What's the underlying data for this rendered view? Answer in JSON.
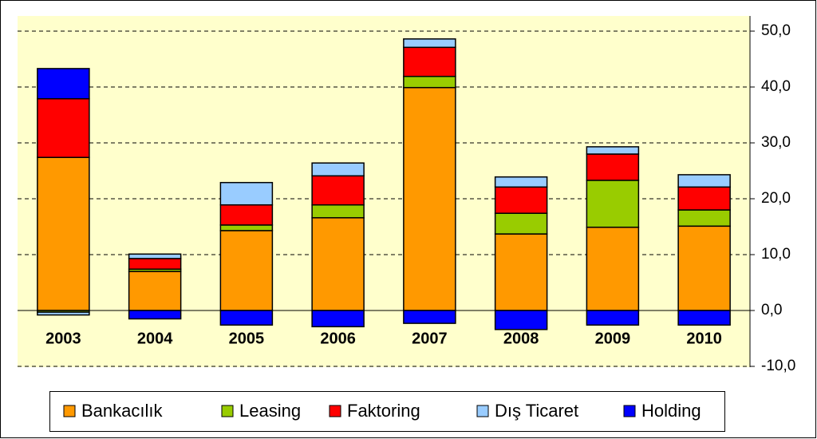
{
  "chart_data": {
    "type": "stacked_bar",
    "categories": [
      "2003",
      "2004",
      "2005",
      "2006",
      "2007",
      "2008",
      "2009",
      "2010"
    ],
    "series": [
      {
        "name": "Bankacılık",
        "color": "#ff9900",
        "values": [
          27.4,
          7.0,
          14.3,
          16.6,
          39.9,
          13.7,
          14.9,
          15.1
        ]
      },
      {
        "name": "Leasing",
        "color": "#99cc00",
        "values": [
          -0.3,
          0.4,
          1.0,
          2.3,
          2.0,
          3.7,
          8.4,
          2.9
        ]
      },
      {
        "name": "Faktoring",
        "color": "#ff0000",
        "values": [
          10.5,
          1.9,
          3.6,
          5.2,
          5.2,
          4.7,
          4.7,
          4.1
        ]
      },
      {
        "name": "Dış Ticaret",
        "color": "#99ccff",
        "values": [
          -0.5,
          0.8,
          4.0,
          2.3,
          1.5,
          1.8,
          1.3,
          2.2
        ]
      },
      {
        "name": "Holding",
        "color": "#0000ff",
        "values": [
          5.4,
          -1.5,
          -2.6,
          -2.9,
          -2.3,
          -3.4,
          -2.6,
          -2.6
        ]
      }
    ],
    "ylim": [
      -10,
      50
    ],
    "yticks": [
      {
        "value": -10,
        "label": "-10,0"
      },
      {
        "value": 0,
        "label": "0,0"
      },
      {
        "value": 10,
        "label": "10,0"
      },
      {
        "value": 20,
        "label": "20,0"
      },
      {
        "value": 30,
        "label": "30,0"
      },
      {
        "value": 40,
        "label": "40,0"
      },
      {
        "value": 50,
        "label": "50,0"
      }
    ],
    "grid": true,
    "legend": "bottom"
  }
}
